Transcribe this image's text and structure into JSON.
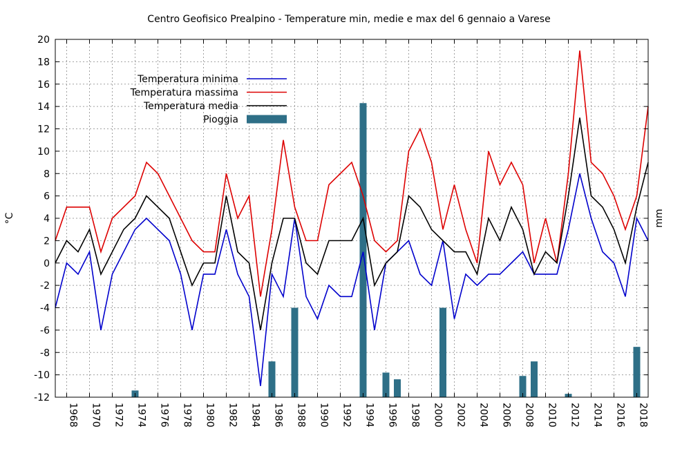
{
  "chart_data": {
    "type": "line",
    "title": "Centro Geofisico Prealpino - Temperature min, medie e max del 6 gennaio a Varese",
    "ylabel": "°C",
    "y2label": "mm",
    "ylim": [
      -12,
      20
    ],
    "y_ticks": [
      -12,
      -10,
      -8,
      -6,
      -4,
      -2,
      0,
      2,
      4,
      6,
      8,
      10,
      12,
      14,
      16,
      18,
      20
    ],
    "xlim": [
      1967,
      2019
    ],
    "x_ticks": [
      1968,
      1970,
      1972,
      1974,
      1976,
      1978,
      1980,
      1982,
      1984,
      1986,
      1988,
      1990,
      1992,
      1994,
      1996,
      1998,
      2000,
      2002,
      2004,
      2006,
      2008,
      2010,
      2012,
      2014,
      2016,
      2018
    ],
    "grid": true,
    "legend_position": "top-left",
    "x": [
      1967,
      1968,
      1969,
      1970,
      1971,
      1972,
      1973,
      1974,
      1975,
      1976,
      1977,
      1978,
      1979,
      1980,
      1981,
      1982,
      1983,
      1984,
      1985,
      1986,
      1987,
      1988,
      1989,
      1990,
      1991,
      1992,
      1993,
      1994,
      1995,
      1996,
      1997,
      1998,
      1999,
      2000,
      2001,
      2002,
      2003,
      2004,
      2005,
      2006,
      2007,
      2008,
      2009,
      2010,
      2011,
      2012,
      2013,
      2014,
      2015,
      2016,
      2017,
      2018,
      2019
    ],
    "series": [
      {
        "name": "Temperatura minima",
        "color": "#0000cc",
        "values": [
          -4,
          0,
          -1,
          1,
          -6,
          -1,
          1,
          3,
          4,
          3,
          2,
          -1,
          -6,
          -1,
          -1,
          3,
          -1,
          -3,
          -11,
          -1,
          -3,
          4,
          -3,
          -5,
          -2,
          -3,
          -3,
          1,
          -6,
          0,
          1,
          2,
          -1,
          -2,
          2,
          -5,
          -1,
          -2,
          -1,
          -1,
          0,
          1,
          -1,
          -1,
          -1,
          3,
          8,
          4,
          1,
          0,
          -3,
          4,
          2
        ]
      },
      {
        "name": "Temperatura massima",
        "color": "#dd0000",
        "values": [
          2,
          5,
          5,
          5,
          1,
          4,
          5,
          6,
          9,
          8,
          6,
          4,
          2,
          1,
          1,
          8,
          4,
          6,
          -3,
          3,
          11,
          5,
          2,
          2,
          7,
          8,
          9,
          6,
          2,
          1,
          2,
          10,
          12,
          9,
          3,
          7,
          3,
          0,
          10,
          7,
          9,
          7,
          0,
          4,
          0,
          8,
          19,
          9,
          8,
          6,
          3,
          6,
          14
        ]
      },
      {
        "name": "Temperatura media",
        "color": "#000000",
        "values": [
          0,
          2,
          1,
          3,
          -1,
          1,
          3,
          4,
          6,
          5,
          4,
          1,
          -2,
          0,
          0,
          6,
          1,
          0,
          -6,
          0,
          4,
          4,
          0,
          -1,
          2,
          2,
          2,
          4,
          -2,
          0,
          1,
          6,
          5,
          3,
          2,
          1,
          1,
          -1,
          4,
          2,
          5,
          3,
          -1,
          1,
          0,
          6,
          13,
          6,
          5,
          3,
          0,
          5,
          9
        ]
      }
    ],
    "bars": {
      "name": "Pioggia",
      "color": "#2e6f87",
      "x": [
        1974,
        1986,
        1988,
        1994,
        1996,
        1997,
        2001,
        2008,
        2009,
        2012,
        2018
      ],
      "values": [
        -11.4,
        -8.8,
        -4,
        14.3,
        -9.8,
        -10.4,
        -4,
        -10.1,
        -8.8,
        -11.7,
        -7.5
      ]
    }
  }
}
